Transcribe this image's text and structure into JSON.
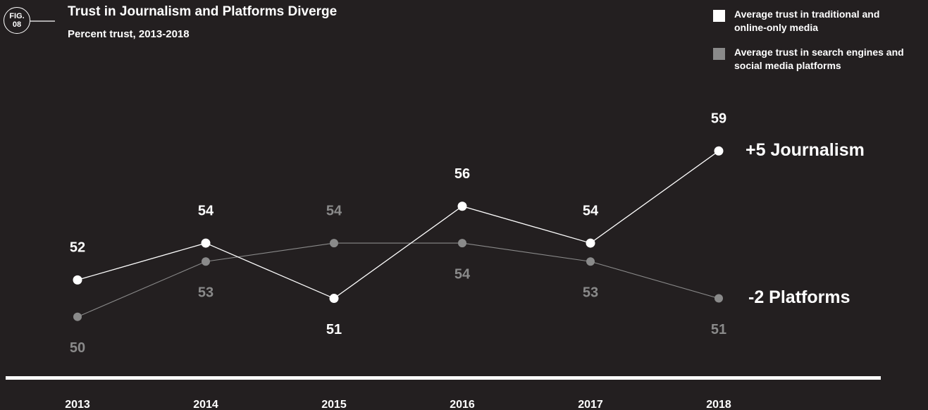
{
  "chart_data": {
    "type": "line",
    "fig_label": "FIG. 08",
    "title": "Trust in Journalism and Platforms Diverge",
    "subtitle": "Percent trust, 2013-2018",
    "categories": [
      "2013",
      "2014",
      "2015",
      "2016",
      "2017",
      "2018"
    ],
    "series": [
      {
        "name": "Average trust in traditional and online-only media",
        "color": "#ffffff",
        "values": [
          52,
          54,
          51,
          56,
          54,
          59
        ],
        "end_label": "+5 Journalism"
      },
      {
        "name": "Average trust in search engines and social media platforms",
        "color": "#8a8a8a",
        "values": [
          50,
          53,
          54,
          54,
          53,
          51
        ],
        "end_label": "-2 Platforms"
      }
    ],
    "ylim": [
      48,
      61
    ]
  }
}
